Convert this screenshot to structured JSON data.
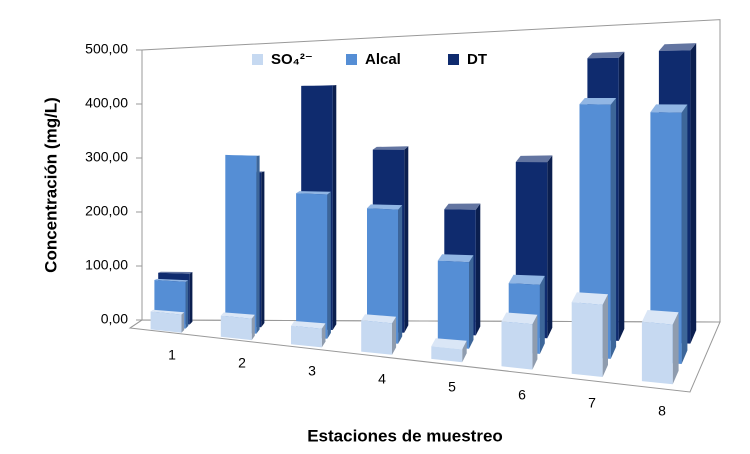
{
  "chart_data": {
    "type": "bar3d",
    "x_label": "Estaciones de muestreo",
    "y_label": "Concentración (mg/L)",
    "categories": [
      "1",
      "2",
      "3",
      "4",
      "5",
      "6",
      "7",
      "8"
    ],
    "series": [
      {
        "name": "SO₄²⁻",
        "color": "#c6d9f1",
        "values": [
          30,
          35,
          30,
          50,
          20,
          70,
          110,
          90
        ]
      },
      {
        "name": "Alcal",
        "color": "#558ed5",
        "values": [
          80,
          300,
          240,
          220,
          140,
          110,
          400,
          390
        ]
      },
      {
        "name": "DT",
        "color": "#0f2b6e",
        "values": [
          90,
          270,
          420,
          310,
          210,
          290,
          460,
          470
        ]
      }
    ],
    "ylim": [
      0,
      500
    ],
    "yticks": [
      {
        "value": 0,
        "label": "0,00"
      },
      {
        "value": 100,
        "label": "100,00"
      },
      {
        "value": 200,
        "label": "200,00"
      },
      {
        "value": 300,
        "label": "300,00"
      },
      {
        "value": 400,
        "label": "400,00"
      },
      {
        "value": 500,
        "label": "500,00"
      }
    ],
    "legend": "top"
  }
}
